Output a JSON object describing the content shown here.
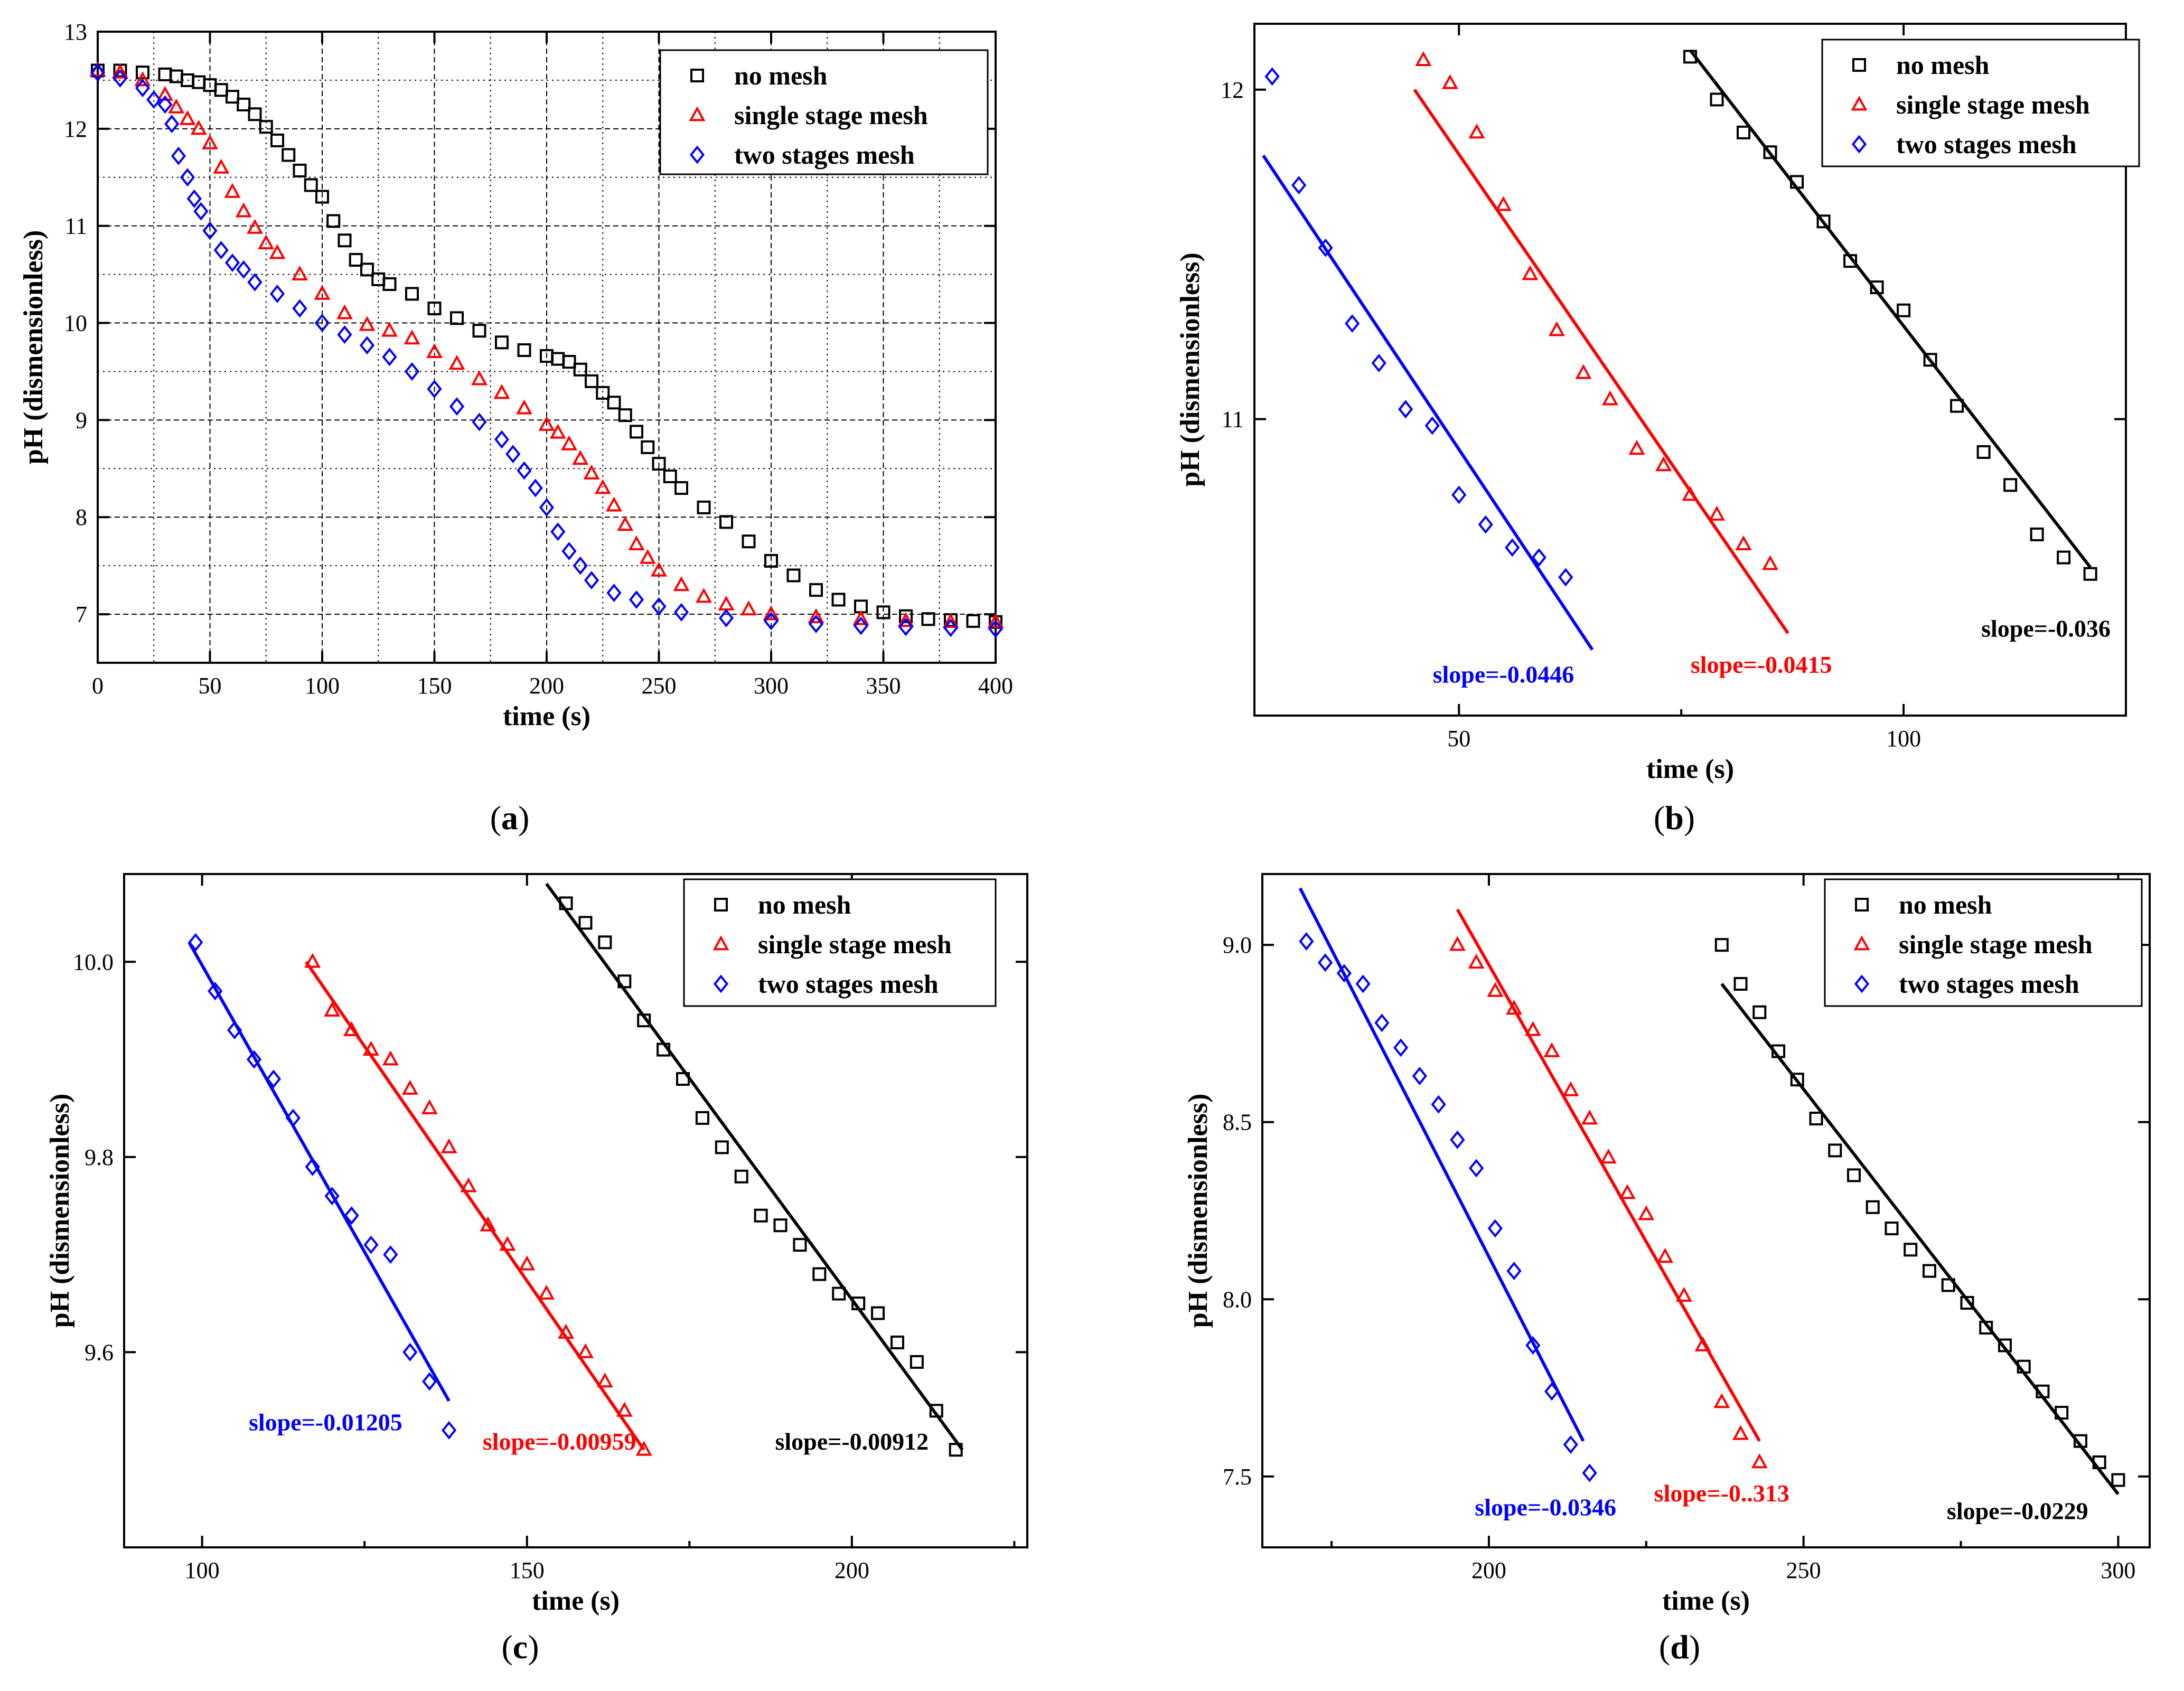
{
  "figure": {
    "colors": {
      "no_mesh": "#000000",
      "single": "#ff0000",
      "two": "#0000ff",
      "grid": "#000000"
    },
    "legend_labels": {
      "no_mesh": "no mesh",
      "single": "single stage mesh",
      "two": "two stages mesh"
    }
  },
  "chart_data": [
    {
      "id": "a",
      "type": "scatter",
      "caption": {
        "open": "(",
        "letter": "a",
        "close": ")"
      },
      "xlabel": "time (s)",
      "ylabel": "pH (dismensionless)",
      "xlim": [
        0,
        400
      ],
      "ylim": [
        6.5,
        13
      ],
      "xticks": [
        0,
        50,
        100,
        150,
        200,
        250,
        300,
        350,
        400
      ],
      "yticks": [
        7,
        8,
        9,
        10,
        11,
        12,
        13
      ],
      "xtick_labels": [
        "0",
        "50",
        "100",
        "150",
        "200",
        "250",
        "300",
        "350",
        "400"
      ],
      "ytick_labels": [
        "7",
        "8",
        "9",
        "10",
        "11",
        "12",
        "13"
      ],
      "grid": true,
      "legend_position": "top-right",
      "series": [
        {
          "key": "no_mesh",
          "name": "no mesh",
          "marker": "square",
          "x": [
            0,
            10,
            20,
            30,
            35,
            40,
            45,
            50,
            55,
            60,
            65,
            70,
            75,
            80,
            85,
            90,
            95,
            100,
            105,
            110,
            115,
            120,
            125,
            130,
            140,
            150,
            160,
            170,
            180,
            190,
            200,
            205,
            210,
            215,
            220,
            225,
            230,
            235,
            240,
            245,
            250,
            255,
            260,
            270,
            280,
            290,
            300,
            310,
            320,
            330,
            340,
            350,
            360,
            370,
            380,
            390,
            400
          ],
          "y": [
            12.6,
            12.6,
            12.58,
            12.56,
            12.54,
            12.5,
            12.48,
            12.45,
            12.4,
            12.33,
            12.25,
            12.15,
            12.02,
            11.88,
            11.73,
            11.57,
            11.42,
            11.3,
            11.05,
            10.85,
            10.65,
            10.55,
            10.45,
            10.4,
            10.3,
            10.15,
            10.05,
            9.92,
            9.8,
            9.72,
            9.66,
            9.63,
            9.6,
            9.52,
            9.4,
            9.28,
            9.18,
            9.05,
            8.88,
            8.72,
            8.55,
            8.42,
            8.3,
            8.1,
            7.95,
            7.75,
            7.55,
            7.4,
            7.25,
            7.15,
            7.08,
            7.02,
            6.98,
            6.95,
            6.94,
            6.93,
            6.92
          ]
        },
        {
          "key": "single",
          "name": "single stage mesh",
          "marker": "triangle",
          "x": [
            0,
            10,
            20,
            30,
            35,
            40,
            45,
            50,
            55,
            60,
            65,
            70,
            75,
            80,
            90,
            100,
            110,
            120,
            130,
            140,
            150,
            160,
            170,
            180,
            190,
            200,
            205,
            210,
            215,
            220,
            225,
            230,
            235,
            240,
            245,
            250,
            260,
            270,
            280,
            290,
            300,
            320,
            340,
            360,
            380,
            400
          ],
          "y": [
            12.6,
            12.58,
            12.5,
            12.35,
            12.22,
            12.1,
            12.0,
            11.85,
            11.6,
            11.35,
            11.15,
            10.98,
            10.82,
            10.72,
            10.5,
            10.3,
            10.1,
            9.98,
            9.92,
            9.84,
            9.7,
            9.58,
            9.42,
            9.28,
            9.12,
            8.95,
            8.87,
            8.75,
            8.6,
            8.45,
            8.3,
            8.12,
            7.92,
            7.72,
            7.58,
            7.45,
            7.3,
            7.18,
            7.1,
            7.05,
            7.0,
            6.97,
            6.95,
            6.93,
            6.92,
            6.92
          ]
        },
        {
          "key": "two",
          "name": "two stages mesh",
          "marker": "diamond",
          "x": [
            0,
            10,
            20,
            25,
            30,
            33,
            36,
            40,
            43,
            46,
            50,
            55,
            60,
            65,
            70,
            80,
            90,
            100,
            110,
            120,
            130,
            140,
            150,
            160,
            170,
            180,
            185,
            190,
            195,
            200,
            205,
            210,
            215,
            220,
            230,
            240,
            250,
            260,
            280,
            300,
            320,
            340,
            360,
            380,
            400
          ],
          "y": [
            12.58,
            12.52,
            12.42,
            12.3,
            12.25,
            12.05,
            11.72,
            11.5,
            11.28,
            11.15,
            10.95,
            10.75,
            10.62,
            10.55,
            10.42,
            10.3,
            10.15,
            10.0,
            9.88,
            9.77,
            9.65,
            9.5,
            9.32,
            9.14,
            8.98,
            8.8,
            8.65,
            8.48,
            8.3,
            8.1,
            7.85,
            7.65,
            7.5,
            7.35,
            7.22,
            7.15,
            7.08,
            7.02,
            6.96,
            6.93,
            6.9,
            6.88,
            6.87,
            6.86,
            6.85
          ]
        }
      ]
    },
    {
      "id": "b",
      "type": "scatter",
      "caption": {
        "open": "(",
        "letter": "b",
        "close": ")"
      },
      "xlabel": "time (s)",
      "ylabel": "pH (dismensionless)",
      "xlim": [
        27,
        125
      ],
      "ylim": [
        10.1,
        12.2
      ],
      "xticks": [
        50,
        100
      ],
      "xminor": [
        75,
        125
      ],
      "yticks": [
        11,
        12
      ],
      "xtick_labels": [
        "50",
        "100"
      ],
      "ytick_labels": [
        "11",
        "12"
      ],
      "grid": false,
      "legend_position": "top-right",
      "series": [
        {
          "key": "no_mesh",
          "name": "no mesh",
          "marker": "square",
          "x": [
            76,
            79,
            82,
            85,
            88,
            91,
            94,
            97,
            100,
            103,
            106,
            109,
            112,
            115,
            118,
            121
          ],
          "y": [
            12.1,
            11.97,
            11.87,
            11.81,
            11.72,
            11.6,
            11.48,
            11.4,
            11.33,
            11.18,
            11.04,
            10.9,
            10.8,
            10.65,
            10.58,
            10.53
          ]
        },
        {
          "key": "single",
          "name": "single stage mesh",
          "marker": "triangle",
          "x": [
            46,
            49,
            52,
            55,
            58,
            61,
            64,
            67,
            70,
            73,
            76,
            79,
            82,
            85
          ],
          "y": [
            12.09,
            12.02,
            11.87,
            11.65,
            11.44,
            11.27,
            11.14,
            11.06,
            10.91,
            10.86,
            10.77,
            10.71,
            10.62,
            10.56
          ]
        },
        {
          "key": "two",
          "name": "two stages mesh",
          "marker": "diamond",
          "x": [
            29,
            32,
            35,
            38,
            41,
            44,
            47,
            50,
            53,
            56,
            59,
            62
          ],
          "y": [
            12.04,
            11.71,
            11.52,
            11.29,
            11.17,
            11.03,
            10.98,
            10.77,
            10.68,
            10.61,
            10.58,
            10.52
          ]
        }
      ],
      "fits": [
        {
          "key": "no_mesh",
          "x": [
            76,
            121
          ],
          "y": [
            12.12,
            10.55
          ]
        },
        {
          "key": "single",
          "x": [
            45,
            87
          ],
          "y": [
            12.0,
            10.35
          ]
        },
        {
          "key": "two",
          "x": [
            28,
            65
          ],
          "y": [
            11.8,
            10.3
          ]
        }
      ],
      "annotations": [
        {
          "key": "two",
          "text": "slope=-0.0446",
          "x": 55,
          "y": 10.2
        },
        {
          "key": "single",
          "text": "slope=-0.0415",
          "x": 84,
          "y": 10.23
        },
        {
          "key": "no_mesh",
          "text": "slope=-0.036",
          "x": 116,
          "y": 10.34
        }
      ]
    },
    {
      "id": "c",
      "type": "scatter",
      "caption": {
        "open": "(",
        "letter": "c",
        "close": ")"
      },
      "xlabel": "time (s)",
      "ylabel": "pH (dismensionless)",
      "xlim": [
        88,
        227
      ],
      "ylim": [
        9.4,
        10.09
      ],
      "xticks": [
        100,
        150,
        200
      ],
      "xminor": [
        125,
        175,
        225
      ],
      "yticks": [
        9.6,
        9.8,
        10.0
      ],
      "xtick_labels": [
        "100",
        "150",
        "200"
      ],
      "ytick_labels": [
        "9.6",
        "9.8",
        "10.0"
      ],
      "grid": false,
      "legend_position": "top-right",
      "series": [
        {
          "key": "no_mesh",
          "name": "no mesh",
          "marker": "square",
          "x": [
            156,
            159,
            162,
            165,
            168,
            171,
            174,
            177,
            180,
            183,
            186,
            189,
            192,
            195,
            198,
            201,
            204,
            207,
            210,
            213,
            216
          ],
          "y": [
            10.06,
            10.04,
            10.02,
            9.98,
            9.94,
            9.91,
            9.88,
            9.84,
            9.81,
            9.78,
            9.74,
            9.73,
            9.71,
            9.68,
            9.66,
            9.65,
            9.64,
            9.61,
            9.59,
            9.54,
            9.5
          ]
        },
        {
          "key": "single",
          "name": "single stage mesh",
          "marker": "triangle",
          "x": [
            117,
            120,
            123,
            126,
            129,
            132,
            135,
            138,
            141,
            144,
            147,
            150,
            153,
            156,
            159,
            162,
            165,
            168
          ],
          "y": [
            10.0,
            9.95,
            9.93,
            9.91,
            9.9,
            9.87,
            9.85,
            9.81,
            9.77,
            9.73,
            9.71,
            9.69,
            9.66,
            9.62,
            9.6,
            9.57,
            9.54,
            9.5
          ]
        },
        {
          "key": "two",
          "name": "two stages mesh",
          "marker": "diamond",
          "x": [
            99,
            102,
            105,
            108,
            111,
            114,
            117,
            120,
            123,
            126,
            129,
            132,
            135,
            138
          ],
          "y": [
            10.02,
            9.97,
            9.93,
            9.9,
            9.88,
            9.84,
            9.79,
            9.76,
            9.74,
            9.71,
            9.7,
            9.6,
            9.57,
            9.52
          ]
        }
      ],
      "fits": [
        {
          "key": "no_mesh",
          "x": [
            153,
            217
          ],
          "y": [
            10.08,
            9.5
          ]
        },
        {
          "key": "single",
          "x": [
            116,
            168
          ],
          "y": [
            10.0,
            9.5
          ]
        },
        {
          "key": "two",
          "x": [
            98,
            138
          ],
          "y": [
            10.02,
            9.55
          ]
        }
      ],
      "annotations": [
        {
          "key": "two",
          "text": "slope=-0.01205",
          "x": 119,
          "y": 9.52
        },
        {
          "key": "single",
          "text": "slope=-0.00959",
          "x": 155,
          "y": 9.5
        },
        {
          "key": "no_mesh",
          "text": "slope=-0.00912",
          "x": 200,
          "y": 9.5
        }
      ]
    },
    {
      "id": "d",
      "type": "scatter",
      "caption": {
        "open": "(",
        "letter": "d",
        "close": ")"
      },
      "xlabel": "time (s)",
      "ylabel": "pH (dismensionless)",
      "xlim": [
        164,
        305
      ],
      "ylim": [
        7.3,
        9.2
      ],
      "xticks": [
        200,
        250,
        300
      ],
      "xminor": [
        175,
        225,
        275
      ],
      "yticks": [
        7.5,
        8.0,
        8.5,
        9.0
      ],
      "xtick_labels": [
        "200",
        "250",
        "300"
      ],
      "ytick_labels": [
        "7.5",
        "8.0",
        "8.5",
        "9.0"
      ],
      "grid": false,
      "legend_position": "top-right",
      "series": [
        {
          "key": "no_mesh",
          "name": "no mesh",
          "marker": "square",
          "x": [
            237,
            240,
            243,
            246,
            249,
            252,
            255,
            258,
            261,
            264,
            267,
            270,
            273,
            276,
            279,
            282,
            285,
            288,
            291,
            294,
            297,
            300
          ],
          "y": [
            9.0,
            8.89,
            8.81,
            8.7,
            8.62,
            8.51,
            8.42,
            8.35,
            8.26,
            8.2,
            8.14,
            8.08,
            8.04,
            7.99,
            7.92,
            7.87,
            7.81,
            7.74,
            7.68,
            7.6,
            7.54,
            7.49
          ]
        },
        {
          "key": "single",
          "name": "single stage mesh",
          "marker": "triangle",
          "x": [
            195,
            198,
            201,
            204,
            207,
            210,
            213,
            216,
            219,
            222,
            225,
            228,
            231,
            234,
            237,
            240,
            243
          ],
          "y": [
            9.0,
            8.95,
            8.87,
            8.82,
            8.76,
            8.7,
            8.59,
            8.51,
            8.4,
            8.3,
            8.24,
            8.12,
            8.01,
            7.87,
            7.71,
            7.62,
            7.54
          ]
        },
        {
          "key": "two",
          "name": "two stages mesh",
          "marker": "diamond",
          "x": [
            171,
            174,
            177,
            180,
            183,
            186,
            189,
            192,
            195,
            198,
            201,
            204,
            207,
            210,
            213,
            216
          ],
          "y": [
            9.01,
            8.95,
            8.92,
            8.89,
            8.78,
            8.71,
            8.63,
            8.55,
            8.45,
            8.37,
            8.2,
            8.08,
            7.87,
            7.74,
            7.59,
            7.51
          ]
        }
      ],
      "fits": [
        {
          "key": "no_mesh",
          "x": [
            237,
            300
          ],
          "y": [
            8.89,
            7.45
          ]
        },
        {
          "key": "single",
          "x": [
            195,
            243
          ],
          "y": [
            9.1,
            7.6
          ]
        },
        {
          "key": "two",
          "x": [
            170,
            215
          ],
          "y": [
            9.16,
            7.6
          ]
        }
      ],
      "annotations": [
        {
          "key": "two",
          "text": "slope=-0.0346",
          "x": 209,
          "y": 7.39
        },
        {
          "key": "single",
          "text": "slope=-0..313",
          "x": 237,
          "y": 7.43
        },
        {
          "key": "no_mesh",
          "text": "slope=-0.0229",
          "x": 284,
          "y": 7.38
        }
      ]
    }
  ]
}
